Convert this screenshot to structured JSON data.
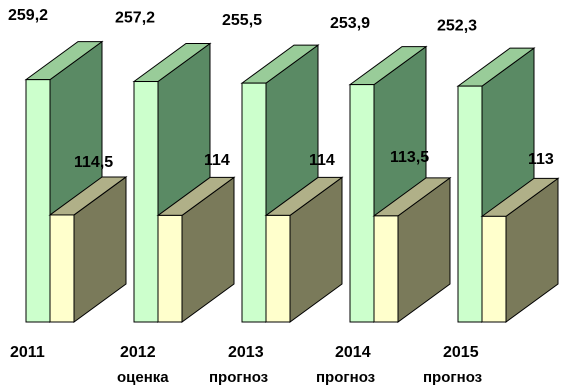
{
  "chart_data": {
    "type": "bar",
    "categories": [
      "2011",
      "2012",
      "2013",
      "2014",
      "2015"
    ],
    "category_sublabels": [
      "",
      "оценка",
      "прогноз",
      "прогноз",
      "прогноз"
    ],
    "series": [
      {
        "values": [
          259.2,
          257.2,
          255.5,
          253.9,
          252.3
        ],
        "value_labels": [
          "259,2",
          "257,2",
          "255,5",
          "253,9",
          "252,3"
        ],
        "front_color": "#ccffcc",
        "side_color": "#5a8a64",
        "top_color": "#99cc99"
      },
      {
        "values": [
          114.5,
          114,
          114,
          113.5,
          113
        ],
        "value_labels": [
          "114,5",
          "114",
          "114",
          "113,5",
          "113"
        ],
        "front_color": "#ffffcc",
        "side_color": "#7a7a5a",
        "top_color": "#b0b088"
      }
    ],
    "style": "3d-columns",
    "grid": false,
    "legend": "none"
  }
}
